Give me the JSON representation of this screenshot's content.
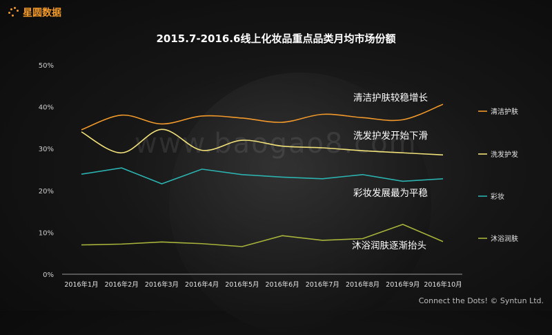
{
  "brand": {
    "logo_text": "星圆数据",
    "logo_color": "#f39a2b"
  },
  "footer": {
    "text": "Connect the Dots! © Syntun Ltd."
  },
  "watermark": {
    "text": "www.baogao8.com"
  },
  "chart_data": {
    "type": "line",
    "title": "2015.7-2016.6线上化妆品重点品类月均市场份额",
    "categories": [
      "2016年1月",
      "2016年2月",
      "2016年3月",
      "2016年4月",
      "2016年5月",
      "2016年6月",
      "2016年7月",
      "2016年8月",
      "2016年9月",
      "2016年10月"
    ],
    "y_ticks": [
      "0%",
      "10%",
      "20%",
      "30%",
      "40%",
      "50%"
    ],
    "ylim": [
      0,
      50
    ],
    "grid": false,
    "legend_position": "right",
    "series": [
      {
        "name": "清洁护肤",
        "color": "#f39a2b",
        "values": [
          34.5,
          38.0,
          35.9,
          37.8,
          37.3,
          36.3,
          38.2,
          37.4,
          36.9,
          40.6
        ]
      },
      {
        "name": "洗发护发",
        "color": "#f2e27a",
        "values": [
          34.0,
          29.0,
          34.6,
          29.6,
          32.0,
          30.6,
          30.2,
          29.5,
          29.0,
          28.5
        ]
      },
      {
        "name": "彩妆",
        "color": "#2bb3b0",
        "values": [
          23.9,
          25.4,
          21.6,
          25.1,
          23.8,
          23.2,
          22.8,
          23.8,
          22.2,
          22.8
        ]
      },
      {
        "name": "沐浴润肤",
        "color": "#a8b43a",
        "values": [
          7.0,
          7.2,
          7.7,
          7.3,
          6.6,
          9.2,
          8.1,
          8.5,
          11.9,
          7.8
        ]
      }
    ],
    "annotations": [
      "清洁护肤较稳增长",
      "洗发护发开始下滑",
      "彩妆发展最为平稳",
      "沐浴润肤逐渐抬头"
    ]
  }
}
